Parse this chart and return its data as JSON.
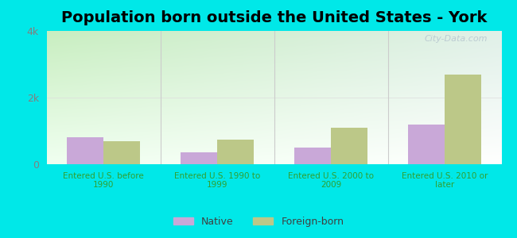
{
  "title": "Population born outside the United States - York",
  "categories": [
    "Entered U.S. before\n1990",
    "Entered U.S. 1990 to\n1999",
    "Entered U.S. 2000 to\n2009",
    "Entered U.S. 2010 or\nlater"
  ],
  "native_values": [
    800,
    350,
    500,
    1200
  ],
  "foreign_values": [
    700,
    750,
    1100,
    2700
  ],
  "native_color": "#c9a8d8",
  "foreign_color": "#bcc888",
  "ylim": [
    0,
    4000
  ],
  "ytick_labels": [
    "0",
    "2k",
    "4k"
  ],
  "background_outer": "#00e8e8",
  "bg_top_left": "#c8eec0",
  "bg_top_right": "#e0f0e8",
  "bg_bottom_left": "#f0fff0",
  "bg_bottom_right": "#ffffff",
  "bar_width": 0.32,
  "title_fontsize": 14,
  "legend_fontsize": 9,
  "watermark_text": "City-Data.com",
  "watermark_color": "#b8c8d0",
  "xlabel_color": "#30a030",
  "ylabel_color": "#808080"
}
